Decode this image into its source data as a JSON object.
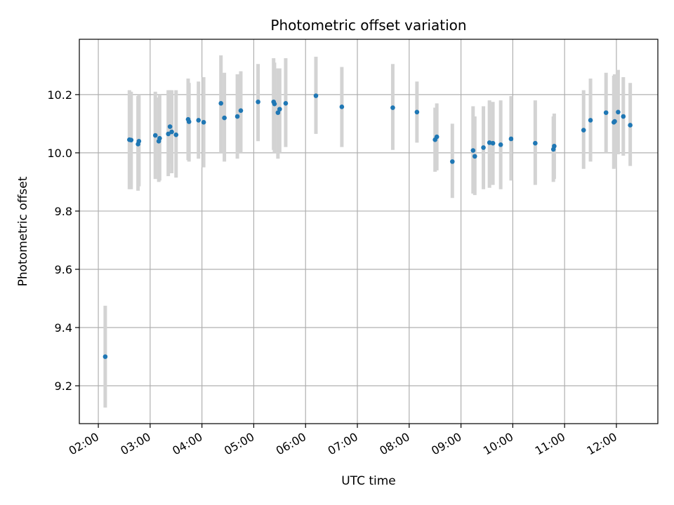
{
  "chart_data": {
    "type": "scatter",
    "title": "Photometric offset variation",
    "xlabel": "UTC time",
    "ylabel": "Photometric offset",
    "x_unit": "UTC time (HH:MM)",
    "xlim": [
      "01:38",
      "12:48"
    ],
    "ylim": [
      9.07,
      10.39
    ],
    "x_ticks": [
      "02:00",
      "03:00",
      "04:00",
      "05:00",
      "06:00",
      "07:00",
      "08:00",
      "09:00",
      "10:00",
      "11:00",
      "12:00"
    ],
    "y_ticks": [
      9.2,
      9.4,
      9.6,
      9.8,
      10.0,
      10.2
    ],
    "y_tick_labels": [
      "9.2",
      "9.4",
      "9.6",
      "9.8",
      "10.0",
      "10.2"
    ],
    "grid": true,
    "legend": false,
    "colors": {
      "points": "#1f77b4",
      "error_bars": "#d3d3d3",
      "grid": "#b0b0b0"
    },
    "series": [
      {
        "x": [
          "02:08",
          "02:36",
          "02:38",
          "02:46",
          "02:47",
          "03:06",
          "03:10",
          "03:11",
          "03:21",
          "03:23",
          "03:25",
          "03:30",
          "03:44",
          "03:45",
          "03:56",
          "04:02",
          "04:22",
          "04:26",
          "04:41",
          "04:45",
          "05:05",
          "05:23",
          "05:24",
          "05:28",
          "05:30",
          "05:37",
          "06:12",
          "06:42",
          "07:41",
          "08:09",
          "08:30",
          "08:32",
          "08:50",
          "09:14",
          "09:16",
          "09:26",
          "09:33",
          "09:37",
          "09:46",
          "09:58",
          "10:26",
          "10:47",
          "10:48",
          "11:22",
          "11:30",
          "11:48",
          "11:57",
          "11:58",
          "12:02",
          "12:08",
          "12:16"
        ],
        "y": [
          9.3,
          10.045,
          10.044,
          10.03,
          10.04,
          10.06,
          10.04,
          10.05,
          10.065,
          10.09,
          10.072,
          10.062,
          10.115,
          10.107,
          10.112,
          10.105,
          10.17,
          10.12,
          10.125,
          10.145,
          10.175,
          10.175,
          10.168,
          10.138,
          10.15,
          10.17,
          10.196,
          10.158,
          10.155,
          10.14,
          10.045,
          10.055,
          9.97,
          10.008,
          9.988,
          10.018,
          10.035,
          10.033,
          10.028,
          10.048,
          10.033,
          10.012,
          10.023,
          10.078,
          10.112,
          10.138,
          10.105,
          10.108,
          10.14,
          10.125,
          10.095
        ],
        "yerr_low": [
          9.125,
          9.875,
          9.875,
          9.87,
          9.885,
          9.91,
          9.9,
          9.905,
          9.92,
          9.965,
          9.93,
          9.915,
          9.975,
          9.97,
          9.98,
          9.95,
          10.0,
          9.97,
          9.98,
          10.0,
          10.04,
          10.01,
          10.0,
          9.98,
          10.0,
          10.02,
          10.065,
          10.02,
          10.01,
          10.035,
          9.935,
          9.94,
          9.845,
          9.86,
          9.855,
          9.875,
          9.88,
          9.89,
          9.875,
          9.905,
          9.89,
          9.9,
          9.91,
          9.945,
          9.97,
          10.0,
          9.945,
          9.95,
          9.995,
          9.99,
          9.955
        ],
        "yerr_high": [
          9.475,
          10.215,
          10.21,
          10.195,
          10.2,
          10.21,
          10.19,
          10.2,
          10.215,
          10.215,
          10.215,
          10.215,
          10.255,
          10.24,
          10.245,
          10.26,
          10.335,
          10.275,
          10.27,
          10.28,
          10.305,
          10.325,
          10.31,
          10.29,
          10.29,
          10.325,
          10.33,
          10.295,
          10.305,
          10.245,
          10.155,
          10.17,
          10.1,
          10.16,
          10.125,
          10.16,
          10.18,
          10.175,
          10.18,
          10.195,
          10.18,
          10.125,
          10.135,
          10.215,
          10.255,
          10.275,
          10.265,
          10.27,
          10.285,
          10.26,
          10.24
        ]
      }
    ]
  }
}
